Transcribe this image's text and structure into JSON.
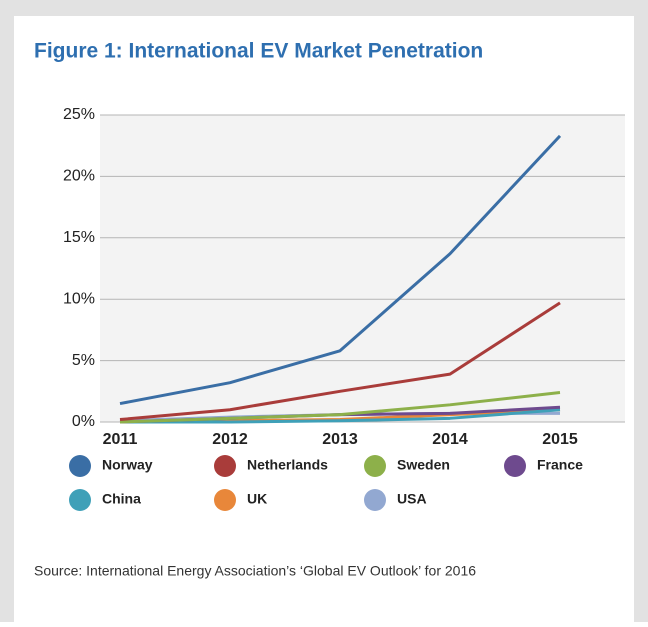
{
  "chart_data": {
    "type": "line",
    "title": "Figure 1: International EV Market Penetration",
    "source": "Source: International Energy Association’s ‘Global EV Outlook’ for 2016",
    "categories": [
      "2011",
      "2012",
      "2013",
      "2014",
      "2015"
    ],
    "series": [
      {
        "name": "Norway",
        "color": "#3a6ea5",
        "values": [
          1.5,
          3.2,
          5.8,
          13.7,
          23.3
        ]
      },
      {
        "name": "Netherlands",
        "color": "#a93c3a",
        "values": [
          0.2,
          1.0,
          2.5,
          3.9,
          9.7
        ]
      },
      {
        "name": "Sweden",
        "color": "#8db04a",
        "values": [
          0.0,
          0.3,
          0.6,
          1.4,
          2.4
        ]
      },
      {
        "name": "France",
        "color": "#6e4a8e",
        "values": [
          0.0,
          0.3,
          0.6,
          0.7,
          1.2
        ]
      },
      {
        "name": "China",
        "color": "#3fa0b8",
        "values": [
          0.0,
          0.0,
          0.1,
          0.3,
          1.0
        ]
      },
      {
        "name": "UK",
        "color": "#e8873a",
        "values": [
          0.0,
          0.1,
          0.2,
          0.6,
          1.0
        ]
      },
      {
        "name": "USA",
        "color": "#92a8d1",
        "values": [
          0.1,
          0.4,
          0.6,
          0.7,
          0.7
        ]
      }
    ],
    "ylim": [
      0,
      25
    ],
    "yticks": [
      {
        "value": 0,
        "label": "0%"
      },
      {
        "value": 5,
        "label": "5%"
      },
      {
        "value": 10,
        "label": "10%"
      },
      {
        "value": 15,
        "label": "15%"
      },
      {
        "value": 20,
        "label": "20%"
      },
      {
        "value": 25,
        "label": "25%"
      }
    ],
    "grid": true,
    "legend": "bottom"
  }
}
